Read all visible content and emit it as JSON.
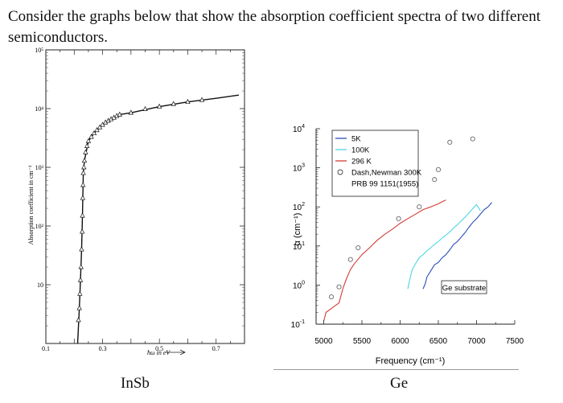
{
  "intro_text": "Consider the graphs below that show the absorption coefficient spectra of two different semiconductors.",
  "captions": {
    "left": "InSb",
    "right": "Ge"
  },
  "chart_data": [
    {
      "type": "scatter",
      "title": "",
      "xlabel": "ħω in eV",
      "ylabel": "Absorption coefficient in cm⁻¹",
      "xlim": [
        0.1,
        0.8
      ],
      "ylim": [
        1,
        100000
      ],
      "yscale": "log",
      "grid": false,
      "x_ticks": [
        "0.1",
        "0.3",
        "0.5",
        "0.7"
      ],
      "y_ticks": [
        "10⁵",
        "10⁴",
        "10³",
        "10²",
        "10"
      ],
      "series": [
        {
          "marker": "triangle-open",
          "x": [
            0.215,
            0.218,
            0.22,
            0.222,
            0.224,
            0.226,
            0.228,
            0.229,
            0.23,
            0.231,
            0.232,
            0.234,
            0.236,
            0.24,
            0.245,
            0.25,
            0.26,
            0.27,
            0.28,
            0.29,
            0.3,
            0.31,
            0.32,
            0.33,
            0.34,
            0.35,
            0.36,
            0.4,
            0.45,
            0.5,
            0.55,
            0.6,
            0.65
          ],
          "y": [
            2.5,
            4,
            7,
            12,
            20,
            40,
            80,
            150,
            300,
            500,
            800,
            1000,
            1300,
            1800,
            2300,
            2800,
            3300,
            3800,
            4300,
            4800,
            5300,
            5800,
            6200,
            6600,
            7000,
            7500,
            7900,
            8500,
            9800,
            10800,
            12000,
            13000,
            14000
          ]
        }
      ],
      "curve": {
        "x": [
          0.212,
          0.218,
          0.222,
          0.226,
          0.229,
          0.232,
          0.236,
          0.25,
          0.27,
          0.3,
          0.33,
          0.36,
          0.4,
          0.5,
          0.6,
          0.7,
          0.78
        ],
        "y": [
          1,
          4,
          12,
          40,
          150,
          800,
          1300,
          2800,
          3800,
          5300,
          6600,
          7900,
          8500,
          10800,
          13000,
          15000,
          17000
        ]
      }
    },
    {
      "type": "line",
      "title": "",
      "xlabel": "Frequency (cm⁻¹)",
      "ylabel": "α (cm⁻¹)",
      "xlim": [
        4900,
        7500
      ],
      "ylim": [
        0.1,
        10000
      ],
      "yscale": "log",
      "grid": false,
      "legend_position": "top-left",
      "x_ticks": [
        "5000",
        "5500",
        "6000",
        "6500",
        "7000",
        "7500"
      ],
      "y_ticks": [
        "10⁻¹",
        "10⁰",
        "10¹",
        "10²",
        "10³",
        "10⁴"
      ],
      "annotation": "Ge substrate",
      "series": [
        {
          "name": "5K",
          "color": "#2b4fb8",
          "x": [
            6300,
            6330,
            6350,
            6400,
            6450,
            6500,
            6550,
            6600,
            6650,
            6700,
            6750,
            6800,
            6850,
            6900,
            6950,
            7000,
            7050,
            7100,
            7150,
            7200
          ],
          "y": [
            0.8,
            1.1,
            1.6,
            2.3,
            3.3,
            3.8,
            5,
            6,
            8,
            11,
            13,
            17,
            22,
            30,
            40,
            50,
            65,
            85,
            100,
            130
          ]
        },
        {
          "name": "100K",
          "color": "#4fd6e6",
          "x": [
            6100,
            6130,
            6160,
            6200,
            6250,
            6300,
            6350,
            6400,
            6450,
            6500,
            6550,
            6600,
            6650,
            6700,
            6750,
            6800,
            6850,
            6900,
            6950,
            7000,
            7050
          ],
          "y": [
            0.8,
            1.5,
            2.5,
            3.5,
            5,
            6,
            7.5,
            9,
            11,
            13,
            16,
            19,
            23,
            29,
            35,
            44,
            55,
            70,
            90,
            115,
            80
          ]
        },
        {
          "name": "296 K",
          "color": "#d23c36",
          "x": [
            5000,
            5030,
            5200,
            5250,
            5300,
            5350,
            5400,
            5500,
            5600,
            5700,
            5800,
            5900,
            6000,
            6100,
            6200,
            6300,
            6400,
            6500,
            6550,
            6600
          ],
          "y": [
            0.12,
            0.2,
            0.35,
            0.8,
            1.5,
            2.5,
            3.5,
            6,
            9,
            14,
            20,
            27,
            38,
            50,
            65,
            85,
            100,
            120,
            135,
            150
          ]
        },
        {
          "name": "Dash,Newman 300K\nPRB  99 1151(1955)",
          "marker": "circle-open",
          "x": [
            5100,
            5200,
            5350,
            5450,
            5980,
            6250,
            6450,
            6500,
            6650,
            6950
          ],
          "y": [
            0.5,
            0.9,
            4.5,
            9,
            50,
            100,
            500,
            900,
            4500,
            5500
          ]
        }
      ]
    }
  ]
}
